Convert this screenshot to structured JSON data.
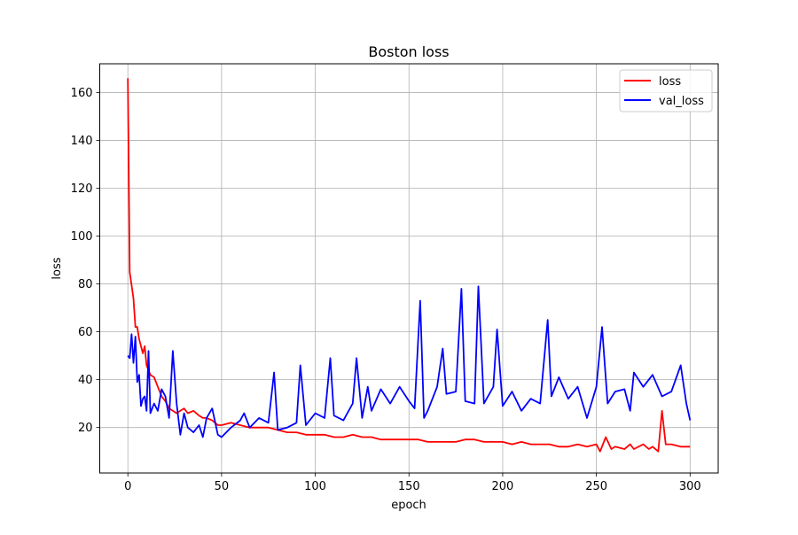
{
  "chart_data": {
    "type": "line",
    "title": "Boston loss",
    "xlabel": "epoch",
    "ylabel": "loss",
    "xlim": [
      -15,
      315
    ],
    "ylim": [
      1,
      172
    ],
    "xticks": [
      0,
      50,
      100,
      150,
      200,
      250,
      300
    ],
    "yticks": [
      20,
      40,
      60,
      80,
      100,
      120,
      140,
      160
    ],
    "grid": true,
    "legend_position": "top-right",
    "series": [
      {
        "name": "loss",
        "color": "#ff0000",
        "x": [
          0,
          1,
          3,
          4,
          5,
          6,
          8,
          9,
          10,
          12,
          14,
          16,
          18,
          20,
          22,
          24,
          26,
          28,
          30,
          32,
          35,
          38,
          40,
          42,
          45,
          48,
          50,
          55,
          60,
          65,
          70,
          75,
          80,
          85,
          90,
          95,
          100,
          105,
          110,
          115,
          120,
          125,
          130,
          135,
          140,
          145,
          150,
          155,
          160,
          165,
          170,
          175,
          180,
          185,
          190,
          195,
          200,
          205,
          210,
          215,
          220,
          225,
          230,
          235,
          240,
          245,
          250,
          252,
          255,
          258,
          260,
          265,
          268,
          270,
          275,
          278,
          280,
          283,
          285,
          287,
          290,
          295,
          300
        ],
        "values": [
          166,
          85,
          74,
          62,
          62,
          57,
          51,
          54,
          46,
          42,
          41,
          37,
          33,
          31,
          28,
          27,
          26,
          27,
          28,
          26,
          27,
          25,
          24,
          24,
          23,
          21,
          21,
          22,
          21,
          20,
          20,
          20,
          19,
          18,
          18,
          17,
          17,
          17,
          16,
          16,
          17,
          16,
          16,
          15,
          15,
          15,
          15,
          15,
          14,
          14,
          14,
          14,
          15,
          15,
          14,
          14,
          14,
          13,
          14,
          13,
          13,
          13,
          12,
          12,
          13,
          12,
          13,
          10,
          16,
          11,
          12,
          11,
          13,
          11,
          13,
          11,
          12,
          10,
          27,
          13,
          13,
          12,
          12
        ]
      },
      {
        "name": "val_loss",
        "color": "#0000ff",
        "x": [
          0,
          1,
          2,
          3,
          4,
          5,
          6,
          7,
          8,
          9,
          10,
          11,
          12,
          14,
          16,
          18,
          20,
          22,
          24,
          26,
          28,
          30,
          32,
          35,
          38,
          40,
          42,
          45,
          48,
          50,
          55,
          60,
          62,
          65,
          70,
          75,
          78,
          80,
          85,
          90,
          92,
          95,
          100,
          105,
          108,
          110,
          115,
          120,
          122,
          125,
          128,
          130,
          135,
          140,
          145,
          150,
          153,
          156,
          158,
          160,
          165,
          168,
          170,
          175,
          178,
          180,
          185,
          187,
          190,
          195,
          197,
          200,
          205,
          210,
          215,
          220,
          224,
          226,
          230,
          235,
          240,
          245,
          250,
          253,
          256,
          260,
          265,
          268,
          270,
          275,
          280,
          285,
          290,
          295,
          298,
          300
        ],
        "values": [
          50,
          49,
          59,
          47,
          58,
          39,
          42,
          29,
          32,
          33,
          27,
          52,
          26,
          30,
          27,
          36,
          33,
          24,
          52,
          30,
          17,
          26,
          20,
          18,
          21,
          16,
          24,
          28,
          17,
          16,
          20,
          23,
          26,
          20,
          24,
          22,
          43,
          19,
          20,
          22,
          46,
          21,
          26,
          24,
          49,
          25,
          23,
          30,
          49,
          24,
          37,
          27,
          36,
          30,
          37,
          31,
          28,
          73,
          24,
          27,
          37,
          53,
          34,
          35,
          78,
          31,
          30,
          79,
          30,
          37,
          61,
          29,
          35,
          27,
          32,
          30,
          65,
          33,
          41,
          32,
          37,
          24,
          37,
          62,
          30,
          35,
          36,
          27,
          43,
          37,
          42,
          33,
          35,
          46,
          30,
          23
        ]
      }
    ]
  }
}
